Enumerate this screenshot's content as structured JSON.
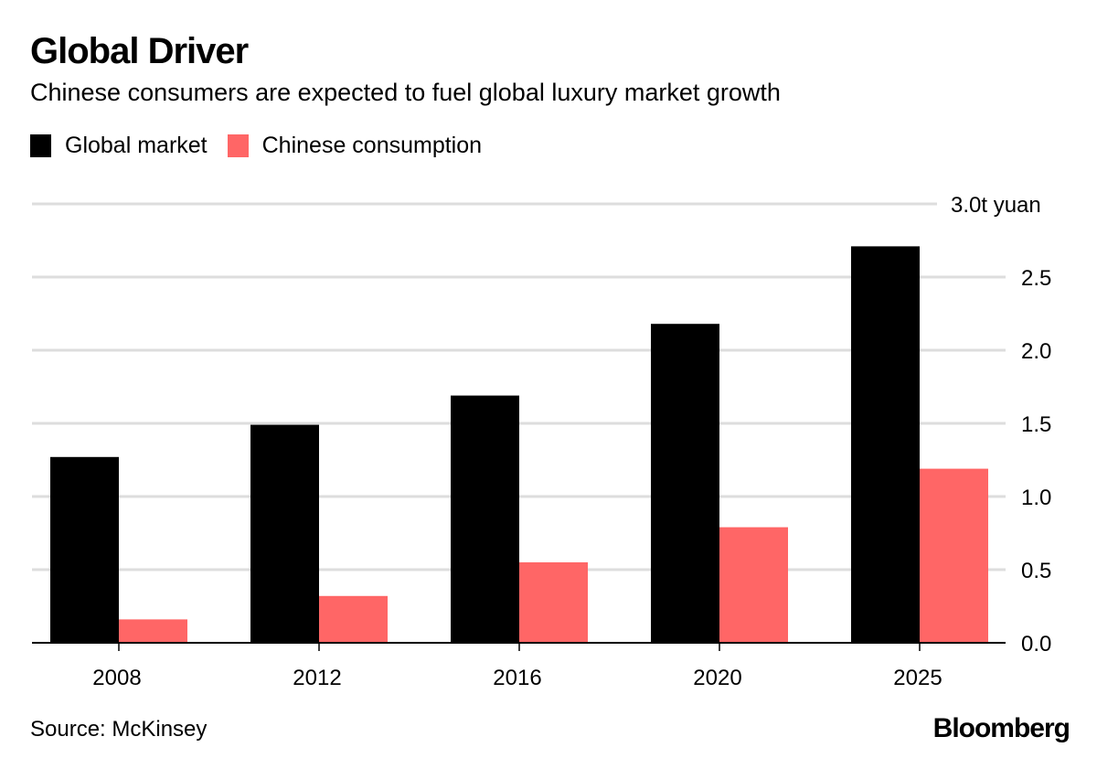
{
  "header": {
    "title": "Global Driver",
    "subtitle": "Chinese consumers are expected to fuel global luxury market growth"
  },
  "legend": [
    {
      "label": "Global market",
      "color": "#000000"
    },
    {
      "label": "Chinese consumption",
      "color": "#ff6666"
    }
  ],
  "footer": {
    "source": "Source: McKinsey",
    "brand": "Bloomberg"
  },
  "chart_data": {
    "type": "bar",
    "title": "Global Driver",
    "subtitle": "Chinese consumers are expected to fuel global luxury market growth",
    "xlabel": "",
    "ylabel": "",
    "categories": [
      "2008",
      "2012",
      "2016",
      "2020",
      "2025"
    ],
    "series": [
      {
        "name": "Global market",
        "color": "#000000",
        "values": [
          1.27,
          1.49,
          1.69,
          2.18,
          2.71
        ]
      },
      {
        "name": "Chinese consumption",
        "color": "#ff6666",
        "values": [
          0.16,
          0.32,
          0.55,
          0.79,
          1.19
        ]
      }
    ],
    "ylim": [
      0,
      3.0
    ],
    "yticks": [
      0.0,
      0.5,
      1.0,
      1.5,
      2.0,
      2.5,
      3.0
    ],
    "ytick_labels": [
      "0.0",
      "0.5",
      "1.0",
      "1.5",
      "2.0",
      "2.5",
      "3.0t yuan"
    ],
    "y_axis_side": "right",
    "grid": true,
    "legend_position": "top-left",
    "source": "Source: McKinsey"
  }
}
